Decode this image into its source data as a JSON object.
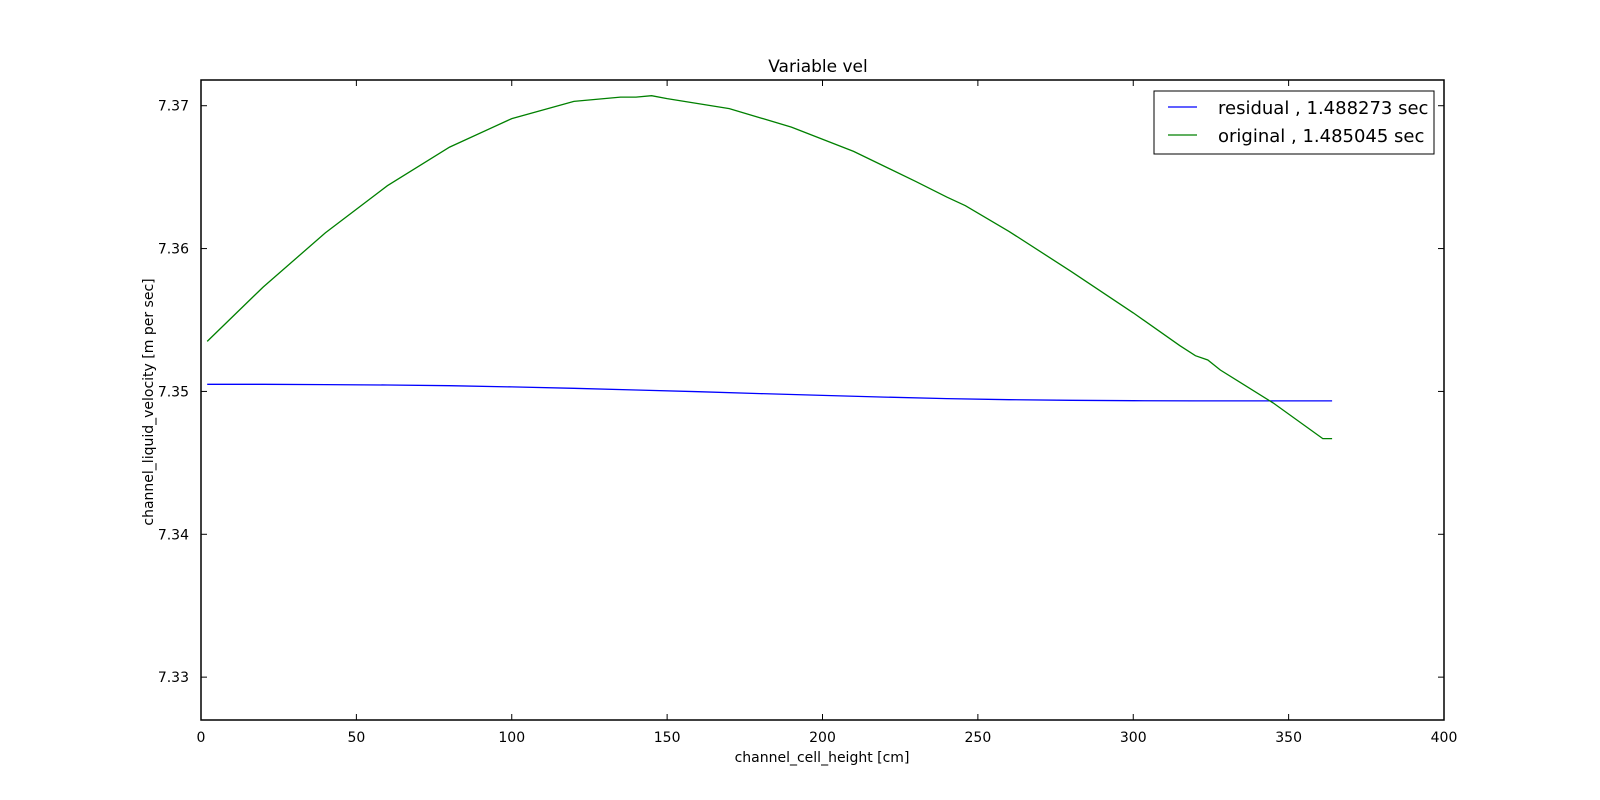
{
  "chart_data": {
    "type": "line",
    "title": "Variable vel",
    "xlabel": "channel_cell_height [cm]",
    "ylabel": "channel_liquid_velocity [m per sec]",
    "xlim": [
      0,
      400
    ],
    "ylim": [
      7.327,
      7.3718
    ],
    "xticks": [
      0,
      50,
      100,
      150,
      200,
      250,
      300,
      350,
      400
    ],
    "yticks": [
      7.33,
      7.34,
      7.35,
      7.36,
      7.37
    ],
    "x_tick_labels": [
      "0",
      "50",
      "100",
      "150",
      "200",
      "250",
      "300",
      "350",
      "400"
    ],
    "y_tick_labels": [
      "7.33",
      "7.34",
      "7.35",
      "7.36",
      "7.37"
    ],
    "grid": false,
    "legend_position": "top-right",
    "series": [
      {
        "name": "residual , 1.488273 sec",
        "color": "#0000ff",
        "x": [
          2,
          20,
          40,
          60,
          80,
          100,
          120,
          140,
          160,
          180,
          200,
          220,
          240,
          260,
          280,
          300,
          320,
          340,
          364
        ],
        "y": [
          7.3505,
          7.3505,
          7.35048,
          7.35045,
          7.3504,
          7.35032,
          7.35022,
          7.3501,
          7.34998,
          7.34985,
          7.34972,
          7.3496,
          7.3495,
          7.34942,
          7.34938,
          7.34935,
          7.34934,
          7.34934,
          7.34934
        ]
      },
      {
        "name": "original , 1.485045 sec",
        "color": "#008000",
        "x": [
          2,
          20,
          40,
          60,
          80,
          100,
          120,
          135,
          140,
          145,
          150,
          170,
          190,
          210,
          230,
          240,
          246,
          260,
          280,
          300,
          315,
          320,
          324,
          328,
          345,
          361,
          364
        ],
        "y": [
          7.3535,
          7.3573,
          7.3611,
          7.3644,
          7.3671,
          7.3691,
          7.3703,
          7.3706,
          7.3706,
          7.3707,
          7.3705,
          7.3698,
          7.3685,
          7.3668,
          7.3647,
          7.3636,
          7.363,
          7.3612,
          7.3584,
          7.3555,
          7.3532,
          7.3525,
          7.3522,
          7.3515,
          7.3492,
          7.3467,
          7.3467
        ]
      }
    ]
  }
}
